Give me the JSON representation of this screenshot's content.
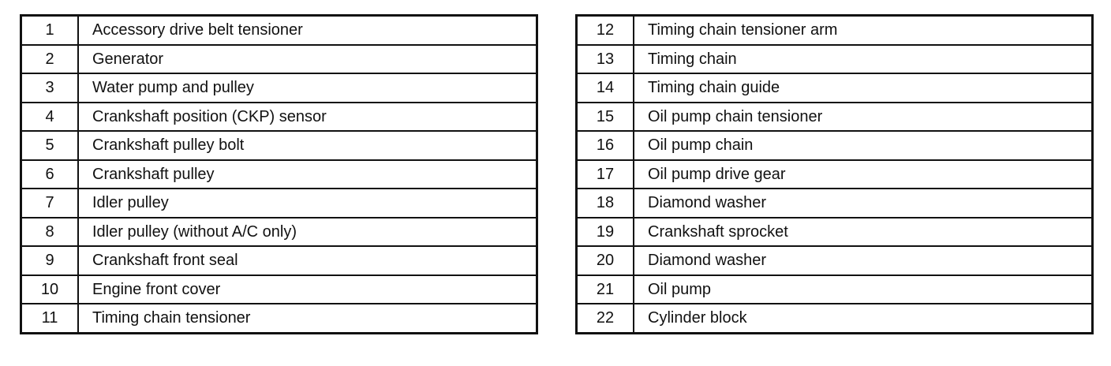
{
  "tables": [
    {
      "rows": [
        {
          "num": "1",
          "desc": "Accessory drive belt tensioner"
        },
        {
          "num": "2",
          "desc": "Generator"
        },
        {
          "num": "3",
          "desc": "Water pump and pulley"
        },
        {
          "num": "4",
          "desc": "Crankshaft position (CKP) sensor"
        },
        {
          "num": "5",
          "desc": "Crankshaft pulley bolt"
        },
        {
          "num": "6",
          "desc": "Crankshaft pulley"
        },
        {
          "num": "7",
          "desc": "Idler pulley"
        },
        {
          "num": "8",
          "desc": "Idler pulley (without A/C only)"
        },
        {
          "num": "9",
          "desc": "Crankshaft front seal"
        },
        {
          "num": "10",
          "desc": "Engine front cover"
        },
        {
          "num": "11",
          "desc": "Timing chain tensioner"
        }
      ]
    },
    {
      "rows": [
        {
          "num": "12",
          "desc": "Timing chain tensioner arm"
        },
        {
          "num": "13",
          "desc": "Timing chain"
        },
        {
          "num": "14",
          "desc": "Timing chain guide"
        },
        {
          "num": "15",
          "desc": "Oil pump chain tensioner"
        },
        {
          "num": "16",
          "desc": "Oil pump chain"
        },
        {
          "num": "17",
          "desc": "Oil pump drive gear"
        },
        {
          "num": "18",
          "desc": "Diamond washer"
        },
        {
          "num": "19",
          "desc": "Crankshaft sprocket"
        },
        {
          "num": "20",
          "desc": "Diamond washer"
        },
        {
          "num": "21",
          "desc": "Oil pump"
        },
        {
          "num": "22",
          "desc": "Cylinder block"
        }
      ]
    }
  ]
}
